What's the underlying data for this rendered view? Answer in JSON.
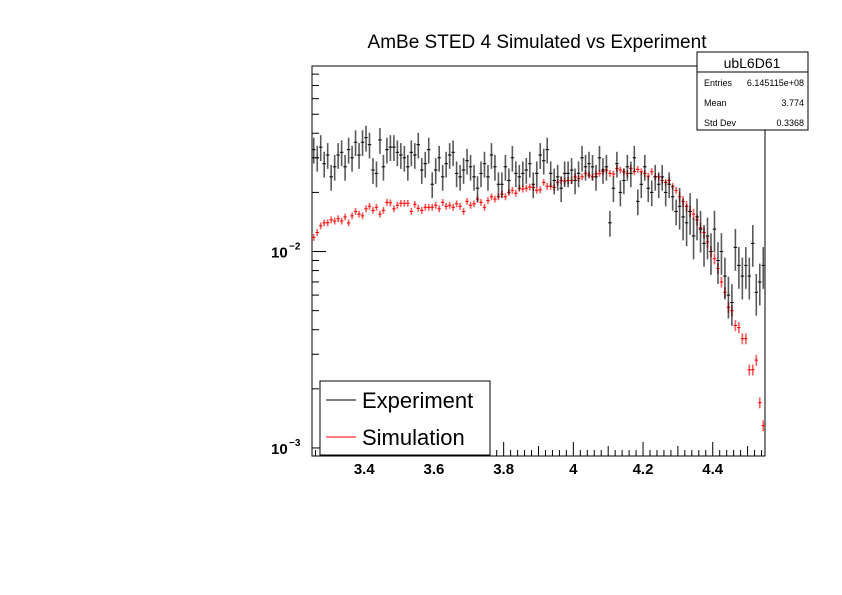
{
  "chart_data": {
    "type": "scatter",
    "title": "AmBe STED 4 Simulated vs Experiment",
    "xlabel": "",
    "ylabel": "",
    "xlim": [
      3.25,
      4.55
    ],
    "ylim": [
      0.00091,
      0.088
    ],
    "y_scale": "log",
    "bin_width": 0.01,
    "x_ticks": [
      "3.4",
      "3.6",
      "3.8",
      "4",
      "4.2",
      "4.4"
    ],
    "x_tick_values": [
      3.4,
      3.6,
      3.8,
      4.0,
      4.2,
      4.4
    ],
    "y_ticks": [
      {
        "base": "10",
        "exp": "−2",
        "value": 0.01
      },
      {
        "base": "10",
        "exp": "−3",
        "value": 0.001
      }
    ],
    "grid": false,
    "legend_placement": "bottom-left",
    "series": [
      {
        "name": "Experiment",
        "color": "#000000",
        "rel_error": 0.15,
        "values": [
          0.033,
          0.03,
          0.034,
          0.028,
          0.031,
          0.024,
          0.027,
          0.031,
          0.032,
          0.027,
          0.033,
          0.03,
          0.036,
          0.031,
          0.036,
          0.038,
          0.035,
          0.026,
          0.025,
          0.037,
          0.027,
          0.033,
          0.034,
          0.034,
          0.032,
          0.031,
          0.03,
          0.027,
          0.032,
          0.031,
          0.035,
          0.026,
          0.028,
          0.033,
          0.022,
          0.026,
          0.03,
          0.024,
          0.028,
          0.031,
          0.032,
          0.025,
          0.024,
          0.026,
          0.029,
          0.027,
          0.024,
          0.021,
          0.025,
          0.028,
          0.024,
          0.031,
          0.027,
          0.022,
          0.022,
          0.027,
          0.023,
          0.03,
          0.025,
          0.024,
          0.025,
          0.026,
          0.028,
          0.022,
          0.025,
          0.031,
          0.029,
          0.033,
          0.025,
          0.023,
          0.024,
          0.021,
          0.025,
          0.025,
          0.026,
          0.023,
          0.025,
          0.03,
          0.027,
          0.028,
          0.027,
          0.024,
          0.03,
          0.026,
          0.027,
          0.014,
          0.021,
          0.028,
          0.02,
          0.023,
          0.027,
          0.025,
          0.03,
          0.018,
          0.022,
          0.027,
          0.021,
          0.02,
          0.024,
          0.022,
          0.024,
          0.02,
          0.022,
          0.019,
          0.016,
          0.017,
          0.015,
          0.014,
          0.016,
          0.012,
          0.015,
          0.013,
          0.011,
          0.012,
          0.01,
          0.013,
          0.009,
          0.01,
          0.0075,
          0.006,
          0.0055,
          0.0105,
          0.0085,
          0.0075,
          0.0085,
          0.0075,
          0.011,
          0.0062,
          0.007,
          0.0085
        ]
      },
      {
        "name": "Simulation",
        "color": "#ff0000",
        "rel_error": 0.04,
        "values": [
          0.0118,
          0.0125,
          0.0135,
          0.014,
          0.014,
          0.0145,
          0.0143,
          0.0147,
          0.0143,
          0.015,
          0.014,
          0.0152,
          0.016,
          0.0155,
          0.0152,
          0.0165,
          0.017,
          0.0162,
          0.0168,
          0.0155,
          0.0162,
          0.0178,
          0.0177,
          0.0165,
          0.0172,
          0.0176,
          0.0176,
          0.0176,
          0.016,
          0.0174,
          0.0166,
          0.0162,
          0.0168,
          0.0168,
          0.0168,
          0.0172,
          0.0165,
          0.0178,
          0.017,
          0.0172,
          0.0168,
          0.0175,
          0.017,
          0.016,
          0.018,
          0.0172,
          0.0175,
          0.0185,
          0.0178,
          0.0168,
          0.0182,
          0.019,
          0.0185,
          0.019,
          0.0196,
          0.019,
          0.02,
          0.0205,
          0.0198,
          0.021,
          0.0208,
          0.021,
          0.0213,
          0.0212,
          0.0205,
          0.0206,
          0.0225,
          0.0215,
          0.0215,
          0.0212,
          0.0225,
          0.023,
          0.0228,
          0.023,
          0.023,
          0.024,
          0.0235,
          0.024,
          0.025,
          0.0245,
          0.024,
          0.0248,
          0.025,
          0.0255,
          0.026,
          0.025,
          0.0248,
          0.0265,
          0.026,
          0.0255,
          0.025,
          0.0265,
          0.0255,
          0.0262,
          0.0255,
          0.025,
          0.0242,
          0.0255,
          0.024,
          0.024,
          0.023,
          0.0225,
          0.023,
          0.0215,
          0.0205,
          0.019,
          0.018,
          0.017,
          0.016,
          0.0155,
          0.0145,
          0.0132,
          0.0125,
          0.0112,
          0.01,
          0.0092,
          0.0082,
          0.007,
          0.0062,
          0.0052,
          0.005,
          0.0042,
          0.0041,
          0.0036,
          0.0036,
          0.0025,
          0.0025,
          0.0028,
          0.0017,
          0.0013
        ]
      }
    ],
    "stats_box": {
      "title": "ubL6D61",
      "rows": [
        {
          "label": "Entries",
          "value": "6.145115e+08"
        },
        {
          "label": "Mean",
          "value": "3.774"
        },
        {
          "label": "Std Dev",
          "value": "0.3368"
        }
      ]
    }
  }
}
